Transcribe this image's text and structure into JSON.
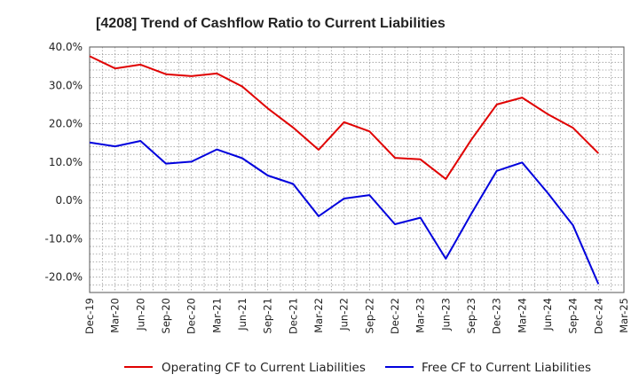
{
  "chart_data": {
    "type": "line",
    "title": "[4208]  Trend of Cashflow Ratio to Current Liabilities",
    "xlabel": "",
    "ylabel": "",
    "categories": [
      "Dec-19",
      "Mar-20",
      "Jun-20",
      "Sep-20",
      "Dec-20",
      "Mar-21",
      "Jun-21",
      "Sep-21",
      "Dec-21",
      "Mar-22",
      "Jun-22",
      "Sep-22",
      "Dec-22",
      "Mar-23",
      "Jun-23",
      "Sep-23",
      "Dec-23",
      "Mar-24",
      "Jun-24",
      "Sep-24",
      "Dec-24",
      "Mar-25"
    ],
    "y_ticks": [
      "40.0%",
      "30.0%",
      "20.0%",
      "10.0%",
      "0.0%",
      "-10.0%",
      "-20.0%"
    ],
    "ylim": [
      -24,
      40
    ],
    "grid": true,
    "legend_position": "bottom",
    "series": [
      {
        "name": "Operating CF to Current Liabilities",
        "color": "#e00000",
        "values": [
          37.6,
          34.4,
          35.4,
          32.9,
          32.4,
          33.1,
          29.7,
          24.0,
          19.0,
          13.2,
          20.4,
          18.0,
          11.1,
          10.7,
          5.6,
          15.8,
          25.0,
          26.8,
          22.5,
          18.9,
          12.3,
          null
        ]
      },
      {
        "name": "Free CF to Current Liabilities",
        "color": "#0000dd",
        "values": [
          15.1,
          14.1,
          15.5,
          9.6,
          10.1,
          13.3,
          11.0,
          6.5,
          4.3,
          -4.1,
          0.5,
          1.4,
          -6.2,
          -4.5,
          -15.2,
          -3.5,
          7.7,
          9.9,
          2.0,
          -6.5,
          -21.8,
          null
        ]
      }
    ]
  }
}
